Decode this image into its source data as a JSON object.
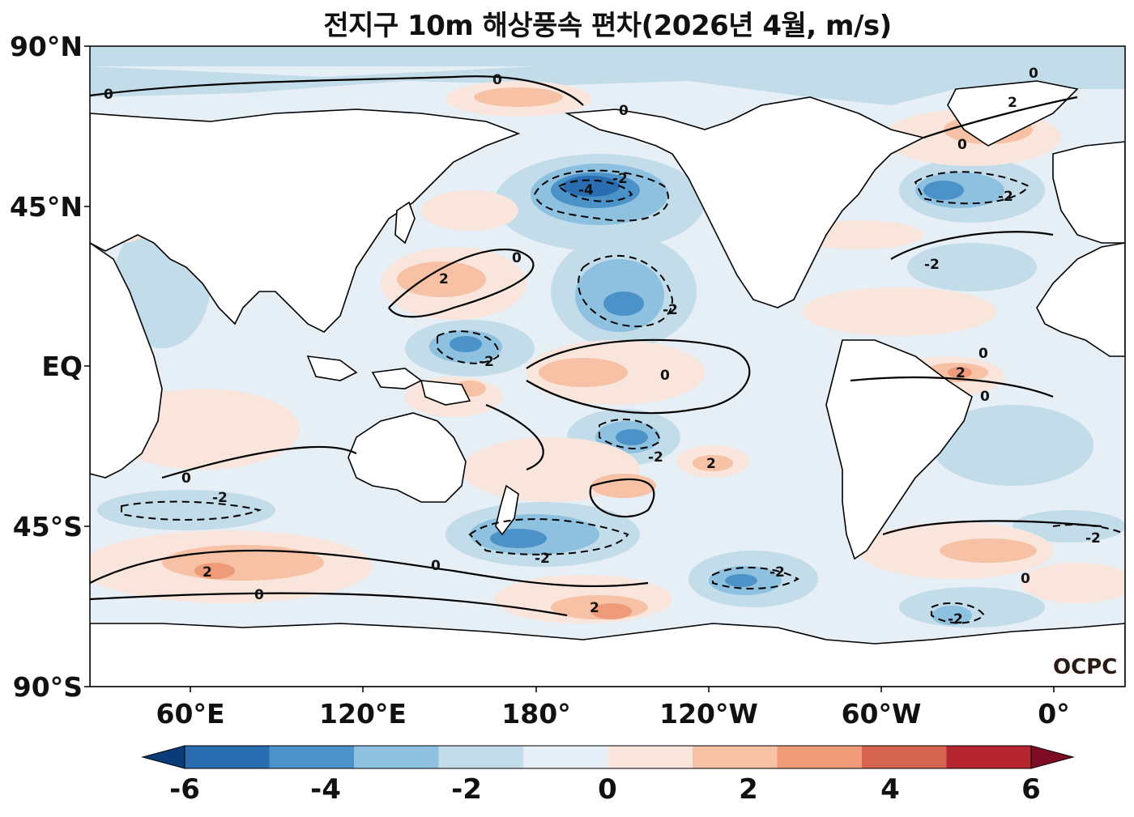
{
  "title": "전지구 10m 해상풍속 편차(2026년 4월, m/s)",
  "lat_labels": [
    "90°N",
    "45°N",
    "EQ",
    "45°S",
    "90°S"
  ],
  "lon_labels": [
    "60°E",
    "120°E",
    "180°",
    "120°W",
    "60°W",
    "0°"
  ],
  "colorbar": {
    "ticks": [
      "-6",
      "-4",
      "-2",
      "0",
      "2",
      "4",
      "6"
    ],
    "colors": [
      "#0b3c7a",
      "#2a6db0",
      "#4a92c7",
      "#8ec0df",
      "#c3dcea",
      "#e6eff5",
      "#f9e5dc",
      "#f6c1a5",
      "#ef9b79",
      "#d4644f",
      "#b52630",
      "#7e0c24"
    ]
  },
  "watermark": "OCPC",
  "contour_labels": [
    "0",
    "-2",
    "-4",
    "2"
  ]
}
